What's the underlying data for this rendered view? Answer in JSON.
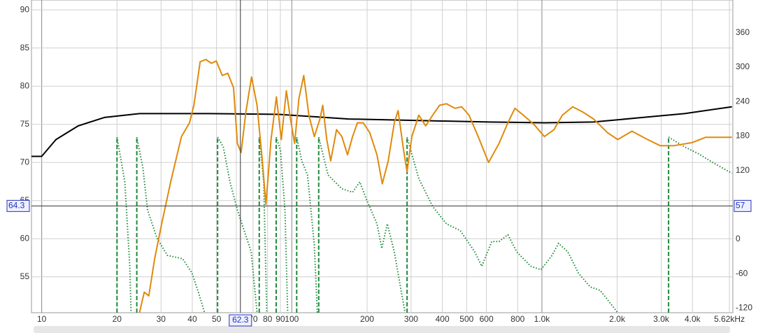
{
  "chart_data": {
    "type": "line",
    "xscale": "log",
    "xlim": [
      9.1,
      5800
    ],
    "ylim": [
      50.3,
      91.3
    ],
    "y2lim": [
      -128,
      417
    ],
    "xticks": [
      10,
      20,
      30,
      40,
      50,
      60,
      70,
      80,
      90,
      100,
      200,
      300,
      400,
      500,
      600,
      800,
      {
        "value": 1000,
        "label": "1.0k"
      },
      {
        "value": 2000,
        "label": "2.0k"
      },
      {
        "value": 3000,
        "label": "3.0k"
      },
      {
        "value": 4000,
        "label": "4.0k"
      },
      {
        "value": 5620,
        "label": "5.62kHz"
      }
    ],
    "yticks": [
      55,
      60,
      65,
      70,
      75,
      80,
      85,
      90
    ],
    "y2ticks": [
      -120,
      -60,
      0,
      60,
      120,
      180,
      240,
      300,
      360
    ],
    "grid": true,
    "cursor": {
      "x": 62.3,
      "y": 64.3,
      "y2": 57
    },
    "series": [
      {
        "color": "#1e8a3a",
        "axis": "y2",
        "style": "dotted",
        "wrap_lines": true,
        "x": [
          20,
          21.5,
          22.5,
          22.8,
          null,
          24.0,
          25.4,
          26.5,
          28.9,
          31.8,
          36.6,
          39.9,
          42.5,
          44.8,
          null,
          50.5,
          53.2,
          56.6,
          60.6,
          64.5,
          68.8,
          72.6,
          null,
          74.1,
          77.2,
          79.4,
          null,
          86.6,
          90.1,
          93.9,
          96.3,
          null,
          104.6,
          109.6,
          115.6,
          123,
          126.5,
          null,
          128.1,
          139.6,
          158.6,
          175,
          187,
          199,
          219,
          229,
          241,
          257,
          275,
          284,
          null,
          289,
          322,
          366,
          415,
          472,
          539,
          575,
          630,
          674,
          731,
          794,
          903,
          992,
          1098,
          1166,
          1270,
          1400,
          1560,
          1710,
          2010,
          null,
          3210,
          3720,
          4230,
          4810,
          5750
        ],
        "values": [
          178,
          100,
          -47,
          -137,
          null,
          178,
          124,
          51,
          2,
          -28,
          -34,
          -59,
          -95,
          -128,
          null,
          178,
          161,
          100,
          51,
          15,
          -22,
          -128,
          null,
          178,
          100,
          -128,
          null,
          178,
          155,
          51,
          -128,
          null,
          178,
          137,
          112,
          -10,
          -128,
          null,
          178,
          112,
          88,
          82,
          100,
          69,
          27,
          -16,
          27,
          -22,
          -95,
          -128,
          null,
          178,
          106,
          57,
          27,
          15,
          -22,
          -47,
          -4,
          -4,
          8,
          -22,
          -47,
          -53,
          -28,
          -7,
          -22,
          -59,
          -83,
          -89,
          -128,
          null,
          178,
          161,
          149,
          134,
          115
        ]
      },
      {
        "color": "#000000",
        "axis": "y",
        "style": "solid",
        "x": [
          9.1,
          10,
          11.4,
          14,
          17.8,
          24.6,
          46.8,
          89,
          169,
          322,
          612,
          1023,
          1610,
          2530,
          3720,
          5750
        ],
        "values": [
          70.8,
          70.8,
          73,
          74.8,
          75.9,
          76.4,
          76.4,
          76.3,
          75.7,
          75.5,
          75.3,
          75.2,
          75.3,
          75.9,
          76.4,
          77.3
        ]
      },
      {
        "color": "#e08a0b",
        "axis": "y",
        "style": "solid",
        "x": [
          24.6,
          25.7,
          26.8,
          28.3,
          30.2,
          32.8,
          36.2,
          39,
          40.6,
          43,
          45.3,
          47.7,
          49.9,
          52.7,
          55.5,
          58.5,
          60.6,
          62.7,
          65.5,
          69,
          72.6,
          76,
          78.8,
          82.6,
          86.8,
          90.8,
          95.1,
          98.8,
          102.6,
          106.8,
          111.6,
          117,
          123,
          129.5,
          133,
          138,
          143,
          151,
          158.6,
          167,
          175,
          183,
          193,
          205,
          219,
          230,
          243,
          257,
          266,
          280,
          289,
          302,
          322,
          343,
          366,
          390,
          415,
          449,
          478,
          511,
          556,
          612,
          674,
          731,
          780,
          843,
          929,
          1023,
          1118,
          1207,
          1328,
          1460,
          1610,
          1830,
          2010,
          2290,
          2610,
          2970,
          3380,
          3980,
          4520,
          5140,
          5750
        ],
        "values": [
          50.3,
          53,
          52.5,
          57.4,
          62,
          67.5,
          73.4,
          75.2,
          77.5,
          83.2,
          83.5,
          83,
          83.3,
          81.4,
          81.7,
          79.8,
          72.5,
          71.3,
          76.6,
          81.2,
          77.5,
          70.7,
          64.5,
          73,
          78.6,
          73,
          79.4,
          75.7,
          72.5,
          78.4,
          81.4,
          76.2,
          73.4,
          75.7,
          77.5,
          73,
          70.2,
          74.3,
          73.4,
          71,
          73.4,
          75.2,
          75.2,
          73.9,
          71,
          67.2,
          70.2,
          75.2,
          76.8,
          71.6,
          68.8,
          73.4,
          76.2,
          74.8,
          76.2,
          77.5,
          77.7,
          77.1,
          77.3,
          76.2,
          73.4,
          70,
          72.5,
          75.2,
          77.1,
          76.2,
          75,
          73.4,
          74.3,
          76.2,
          77.3,
          76.6,
          75.7,
          73.9,
          73,
          74.1,
          73.1,
          72.2,
          72.2,
          72.6,
          73.3,
          73.3,
          73.3
        ]
      }
    ]
  }
}
